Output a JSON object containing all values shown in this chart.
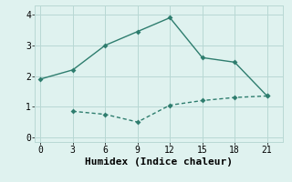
{
  "line1_x": [
    0,
    3,
    6,
    9,
    12,
    15,
    18,
    21
  ],
  "line1_y": [
    1.9,
    2.2,
    3.0,
    3.45,
    3.9,
    2.6,
    2.45,
    1.35
  ],
  "line2_x": [
    3,
    6,
    9,
    12,
    15,
    18,
    21
  ],
  "line2_y": [
    0.85,
    0.75,
    0.5,
    1.05,
    1.2,
    1.3,
    1.35
  ],
  "line_color": "#2e7d6e",
  "bg_color": "#dff2ef",
  "grid_color": "#b8d8d4",
  "xlabel": "Humidex (Indice chaleur)",
  "xlim": [
    -0.5,
    22.5
  ],
  "ylim": [
    -0.15,
    4.3
  ],
  "xticks": [
    0,
    3,
    6,
    9,
    12,
    15,
    18,
    21
  ],
  "yticks": [
    0,
    1,
    2,
    3,
    4
  ],
  "markersize": 3,
  "linewidth": 1.0,
  "tick_fontsize": 7,
  "xlabel_fontsize": 8
}
